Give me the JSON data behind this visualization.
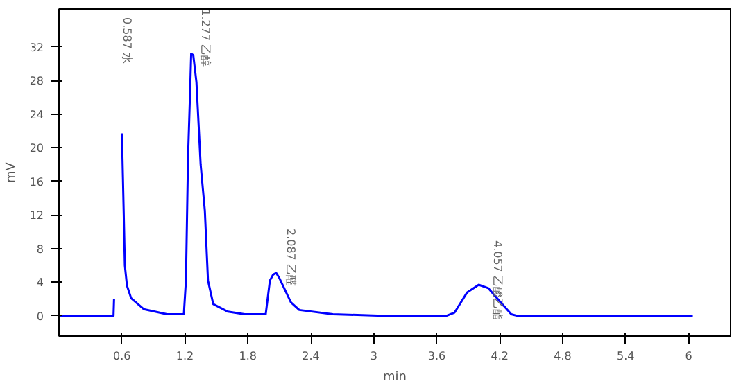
{
  "chart_data": {
    "type": "line",
    "xlabel": "min",
    "ylabel": "mV",
    "x": [
      0.0,
      0.5,
      0.52,
      0.525,
      0.53,
      0.585,
      0.6,
      0.616,
      0.628,
      0.648,
      0.688,
      0.808,
      1.03,
      1.19,
      1.21,
      1.23,
      1.25,
      1.26,
      1.28,
      1.31,
      1.35,
      1.39,
      1.42,
      1.47,
      1.61,
      1.77,
      1.97,
      2.01,
      2.04,
      2.07,
      2.1,
      2.21,
      2.29,
      2.61,
      3.13,
      3.69,
      3.77,
      3.89,
      4.0,
      4.09,
      4.21,
      4.31,
      4.37,
      4.77,
      6.04
    ],
    "series": [
      {
        "color": "#0000ff",
        "values": [
          0,
          0,
          0,
          2,
          null,
          null,
          21.7,
          12.9,
          6,
          3.6,
          2.1,
          0.8,
          0.2,
          0.2,
          4.2,
          18.9,
          26.8,
          31.2,
          31,
          27.8,
          18,
          12.5,
          4.2,
          1.4,
          0.5,
          0.2,
          0.2,
          4.2,
          4.9,
          5.1,
          4.5,
          1.6,
          0.7,
          0.2,
          0,
          0,
          0.4,
          2.8,
          3.7,
          3.3,
          1.6,
          0.2,
          0,
          0,
          0
        ]
      }
    ],
    "xlim": [
      0,
      6.4
    ],
    "ylim": [
      -2.4,
      36.5
    ],
    "xticks": [
      0.6,
      1.2,
      1.8,
      2.4,
      3,
      3.6,
      4.2,
      4.8,
      5.4,
      6
    ],
    "yticks": [
      0,
      4,
      8,
      12,
      16,
      20,
      24,
      28,
      32
    ],
    "annotations": [
      "0.587 水",
      {
        "text": "1.277 乙醇",
        "x": 1.277,
        "y": 31.2
      },
      {
        "text": "2.087 乙醛",
        "x": 2.087,
        "y": 5.1
      },
      {
        "text": "4.057 乙酸乙酯",
        "x": 4.057,
        "y": 3.7
      }
    ],
    "grid": false
  }
}
